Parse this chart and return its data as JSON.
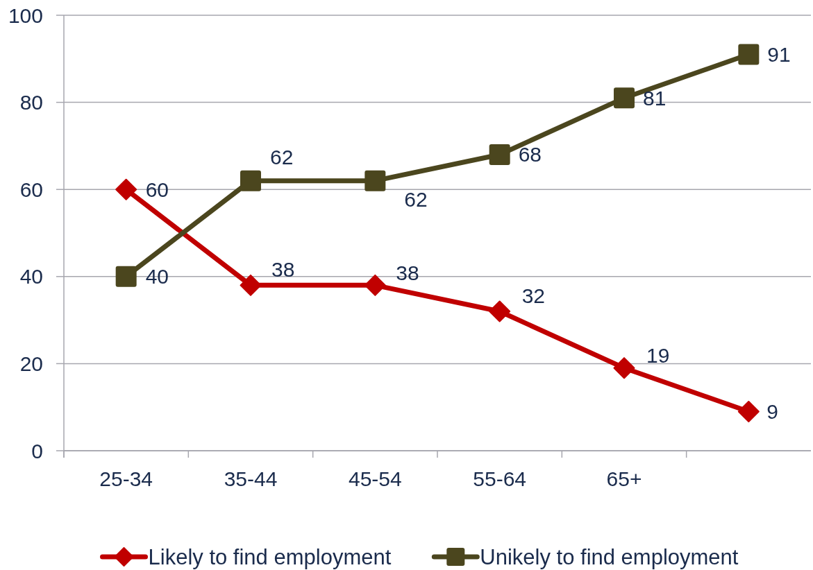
{
  "chart_data": {
    "type": "line",
    "categories": [
      "25-34",
      "35-44",
      "45-54",
      "55-64",
      "65+",
      null
    ],
    "series": [
      {
        "name": "Likely to find employment",
        "color": "#c00000",
        "marker": "diamond",
        "values": [
          60,
          38,
          38,
          32,
          19,
          9
        ]
      },
      {
        "name": "Unikely to find employment",
        "color": "#4b461e",
        "marker": "square",
        "values": [
          40,
          62,
          62,
          68,
          81,
          91
        ]
      }
    ],
    "ylim": [
      0,
      100
    ],
    "yticks": [
      0,
      20,
      40,
      60,
      80,
      100
    ],
    "grid": "y",
    "legend": "bottom",
    "data_labels": true
  }
}
